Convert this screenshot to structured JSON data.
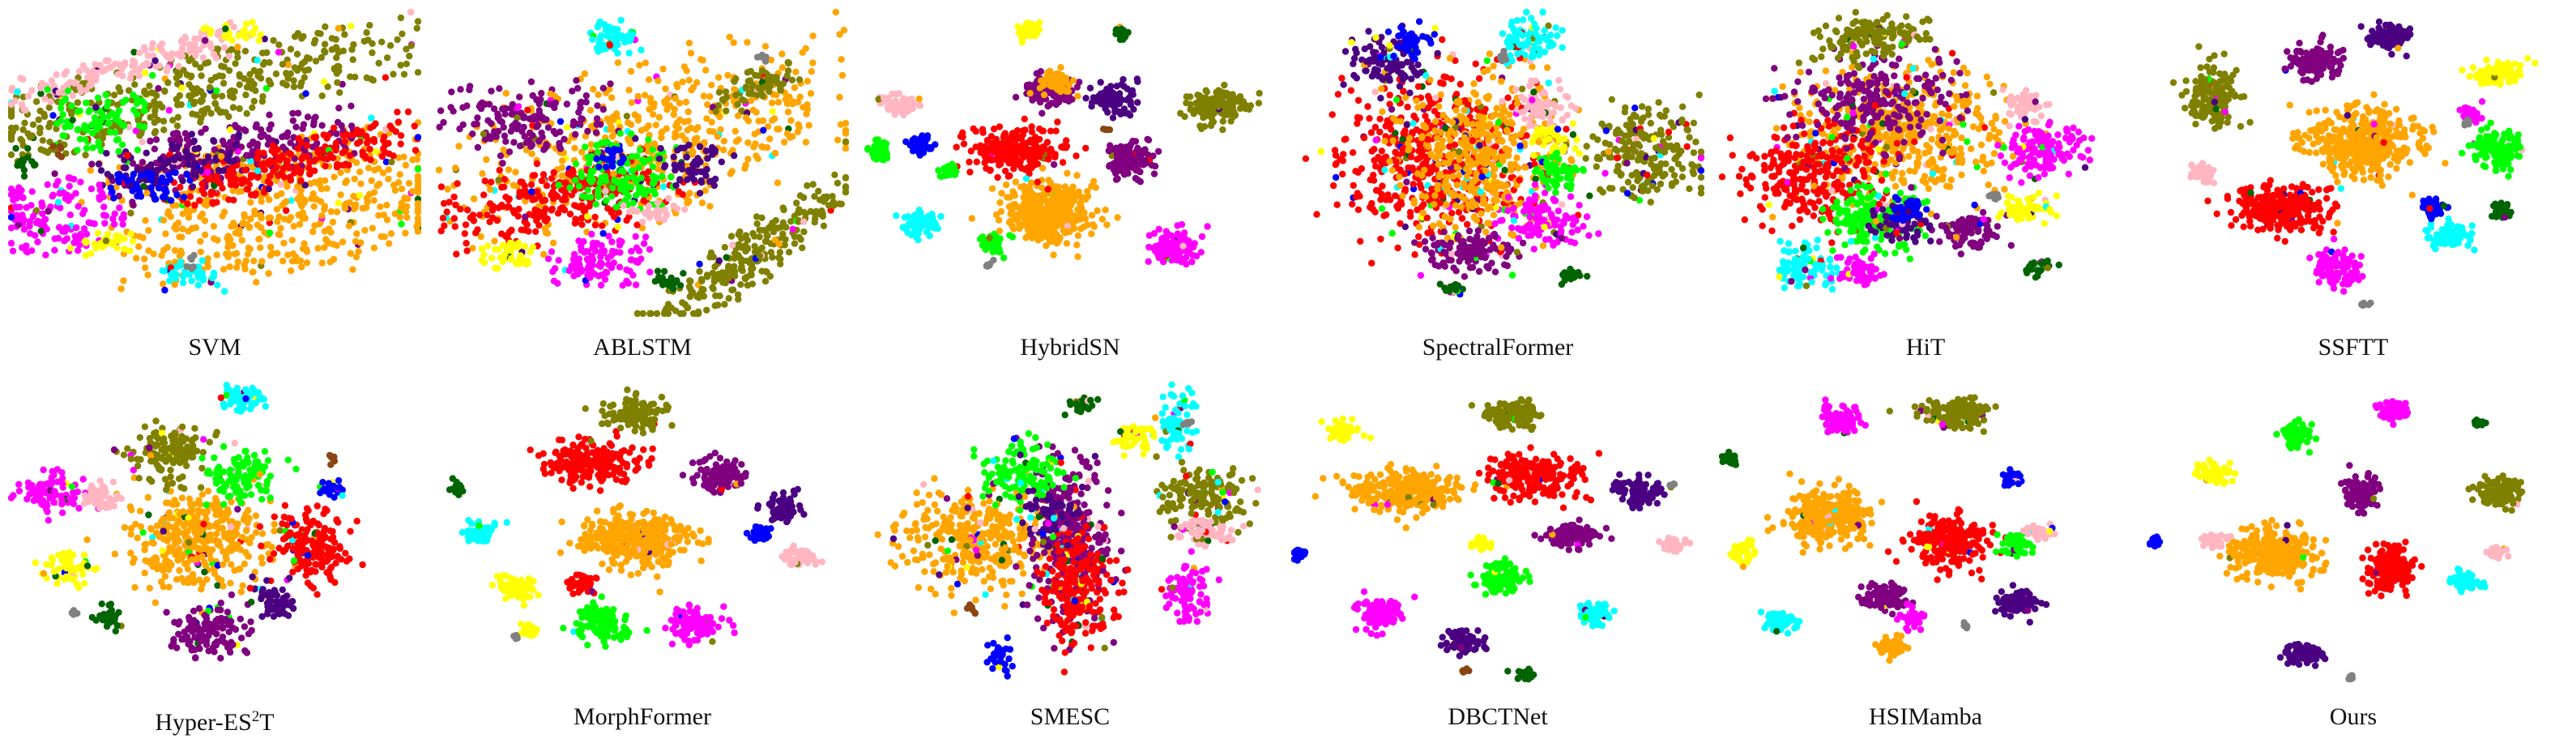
{
  "chart_data": {
    "type": "scatter",
    "description_kind": "t-SNE feature visualization grid",
    "grid": {
      "rows": 2,
      "cols": 6
    },
    "class_colors": [
      "#ff0000",
      "#ffa500",
      "#808000",
      "#800080",
      "#4b0082",
      "#00ff00",
      "#ff00ff",
      "#00ffff",
      "#ffb6c1",
      "#ffff00",
      "#0000ff",
      "#006400",
      "#808080",
      "#8b4513"
    ],
    "panels": [
      {
        "id": "svm",
        "label": "SVM",
        "label_parts": [
          "SVM"
        ]
      },
      {
        "id": "ablstm",
        "label": "ABLSTM",
        "label_parts": [
          "ABLSTM"
        ]
      },
      {
        "id": "hybridsn",
        "label": "HybridSN",
        "label_parts": [
          "HybridSN"
        ]
      },
      {
        "id": "spectralformer",
        "label": "SpectralFormer",
        "label_parts": [
          "SpectralFormer"
        ]
      },
      {
        "id": "hit",
        "label": "HiT",
        "label_parts": [
          "HiT"
        ]
      },
      {
        "id": "ssftt",
        "label": "SSFTT",
        "label_parts": [
          "SSFTT"
        ]
      },
      {
        "id": "hyper-es2t",
        "label": "Hyper-ES2T",
        "label_parts": [
          "Hyper-ES",
          "2",
          "T"
        ]
      },
      {
        "id": "morphformer",
        "label": "MorphFormer",
        "label_parts": [
          "MorphFormer"
        ]
      },
      {
        "id": "smesc",
        "label": "SMESC",
        "label_parts": [
          "SMESC"
        ]
      },
      {
        "id": "dbctnet",
        "label": "DBCTNet",
        "label_parts": [
          "DBCTNet"
        ]
      },
      {
        "id": "hsimamba",
        "label": "HSIMamba",
        "label_parts": [
          "HSIMamba"
        ]
      },
      {
        "id": "ours",
        "label": "Ours",
        "label_parts": [
          "Ours"
        ]
      }
    ]
  }
}
